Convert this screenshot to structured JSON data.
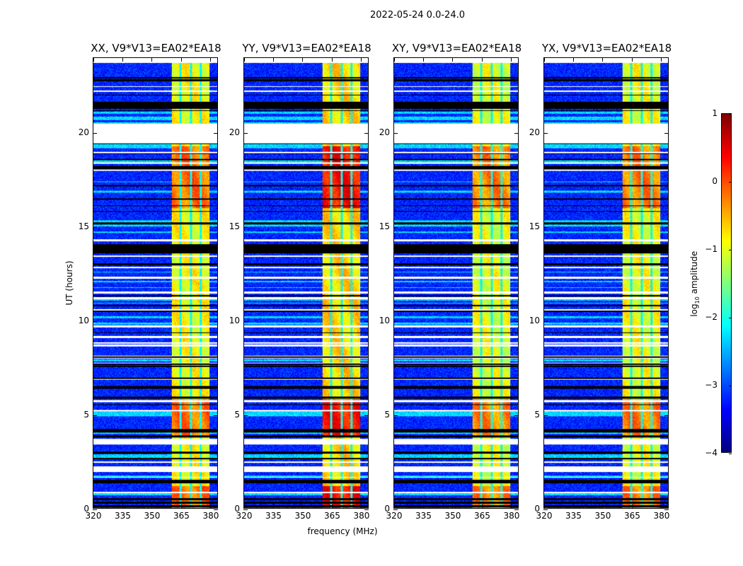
{
  "suptitle": "2022-05-24 0.0-24.0",
  "xlabel": "frequency (MHz)",
  "ylabel": "UT (hours)",
  "colorbar": {
    "label_prefix": "log",
    "label_sub": "10",
    "label_suffix": " amplitude",
    "range": [
      -4,
      1
    ],
    "ticks": [
      1,
      0,
      -1,
      -2,
      -3,
      -4
    ],
    "tick_labels": [
      "1",
      "0",
      "−1",
      "−2",
      "−3",
      "−4"
    ],
    "colormap": "jet"
  },
  "chart_data": [
    {
      "type": "heatmap",
      "title": "XX, V9*V13=EA02*EA18",
      "band_level": -0.9,
      "peak_level": -0.2,
      "seed": 11
    },
    {
      "type": "heatmap",
      "title": "YY, V9*V13=EA02*EA18",
      "band_level": -0.7,
      "peak_level": 0.3,
      "seed": 23
    },
    {
      "type": "heatmap",
      "title": "XY, V9*V13=EA02*EA18",
      "band_level": -1.0,
      "peak_level": -0.3,
      "seed": 37
    },
    {
      "type": "heatmap",
      "title": "YX, V9*V13=EA02*EA18",
      "band_level": -0.95,
      "peak_level": -0.25,
      "seed": 41
    }
  ],
  "axes": {
    "xlim": [
      320,
      384
    ],
    "ylim": [
      0,
      24
    ],
    "xticks": [
      320,
      335,
      350,
      365,
      380
    ],
    "xtick_labels": [
      "320",
      "335",
      "350",
      "365",
      "380"
    ],
    "yticks": [
      0,
      5,
      10,
      15,
      20
    ],
    "ytick_labels": [
      "0",
      "5",
      "10",
      "15",
      "20"
    ],
    "background_level": -3.2,
    "rfi_band_mhz": [
      360.4,
      380
    ],
    "channel_gaps_mhz": [
      364.8,
      370.2,
      375.2
    ],
    "flagged_gaps_hours": [
      [
        19.47,
        20.53
      ],
      [
        3.41,
        3.71
      ],
      [
        1.95,
        2.25
      ],
      [
        23.75,
        24
      ]
    ],
    "flagged_black_hours": [
      [
        21.3,
        21.7
      ],
      [
        13.6,
        14.1
      ]
    ],
    "high_emission_hours": [
      [
        16.0,
        19.3
      ],
      [
        3.8,
        5.8
      ],
      [
        0,
        1.2
      ]
    ]
  }
}
